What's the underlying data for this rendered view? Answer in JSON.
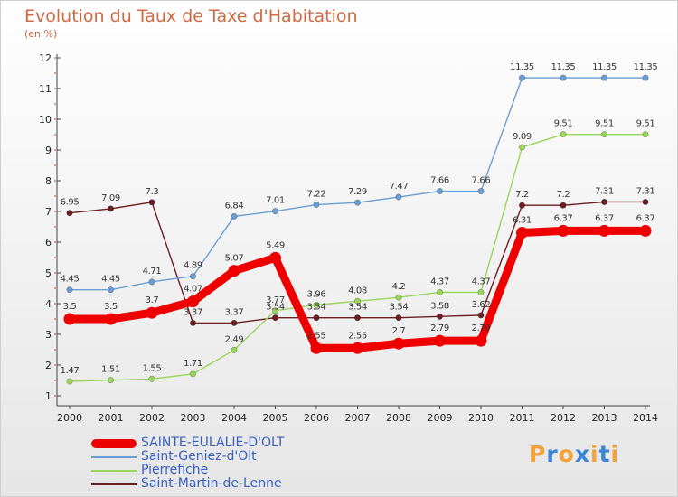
{
  "title": "Evolution du Taux de Taxe d'Habitation",
  "unit_label": "(en %)",
  "logo": {
    "text": "Proxiti",
    "colors": [
      "#f2a23a",
      "#3b86d6",
      "#f2a23a",
      "#3b86d6",
      "#f2a23a",
      "#3b86d6",
      "#f2a23a"
    ]
  },
  "chart_data": {
    "type": "line",
    "title": "Evolution du Taux de Taxe d'Habitation",
    "ylabel": "(en %)",
    "ylim": [
      1,
      12
    ],
    "yticks": [
      1,
      2,
      3,
      4,
      5,
      6,
      7,
      8,
      9,
      10,
      11,
      12
    ],
    "x": [
      "2000",
      "2001",
      "2002",
      "2003",
      "2004",
      "2005",
      "2006",
      "2007",
      "2008",
      "2009",
      "2010",
      "2011",
      "2012",
      "2013",
      "2014"
    ],
    "grid": false,
    "legend": "bottom-left",
    "series": [
      {
        "name": "SAINTE-EULALIE-D'OLT",
        "color": "#ee0000",
        "values": [
          3.5,
          3.5,
          3.7,
          4.07,
          5.07,
          5.49,
          2.55,
          2.55,
          2.7,
          2.79,
          2.79,
          6.31,
          6.37,
          6.37,
          6.37
        ],
        "labels": [
          "3.5",
          "3.5",
          "3.7",
          "4.07",
          "5.07",
          "5.49",
          "2.55",
          "2.55",
          "2.7",
          "2.79",
          "2.79",
          "6.31",
          "6.37",
          "6.37",
          "6.37"
        ]
      },
      {
        "name": "Saint-Geniez-d'Olt",
        "color": "#6a9ed4",
        "values": [
          4.45,
          4.45,
          4.71,
          4.89,
          6.84,
          7.01,
          7.22,
          7.29,
          7.47,
          7.66,
          7.66,
          11.35,
          11.35,
          11.35,
          11.35
        ],
        "labels": [
          "4.45",
          "4.45",
          "4.71",
          "4.89",
          "6.84",
          "7.01",
          "7.22",
          "7.29",
          "7.47",
          "7.66",
          "7.66",
          "11.35",
          "11.35",
          "11.35",
          "11.35"
        ]
      },
      {
        "name": "Pierrefiche",
        "color": "#99d55a",
        "values": [
          1.47,
          1.51,
          1.55,
          1.71,
          2.49,
          3.77,
          3.96,
          4.08,
          4.2,
          4.37,
          4.37,
          9.09,
          9.51,
          9.51,
          9.51
        ],
        "labels": [
          "1.47",
          "1.51",
          "1.55",
          "1.71",
          "2.49",
          "3.77",
          "3.96",
          "4.08",
          "4.2",
          "4.37",
          "4.37",
          "9.09",
          "9.51",
          "9.51",
          "9.51"
        ]
      },
      {
        "name": "Saint-Martin-de-Lenne",
        "color": "#6b1f24",
        "values": [
          6.95,
          7.09,
          7.3,
          3.37,
          3.37,
          3.54,
          3.54,
          3.54,
          3.54,
          3.58,
          3.62,
          7.2,
          7.2,
          7.31,
          7.31
        ],
        "labels": [
          "6.95",
          "7.09",
          "7.3",
          "3.37",
          "3.37",
          "3.54",
          "3.54",
          "3.54",
          "3.54",
          "3.58",
          "3.62",
          "7.2",
          "7.2",
          "7.31",
          "7.31"
        ]
      }
    ]
  }
}
